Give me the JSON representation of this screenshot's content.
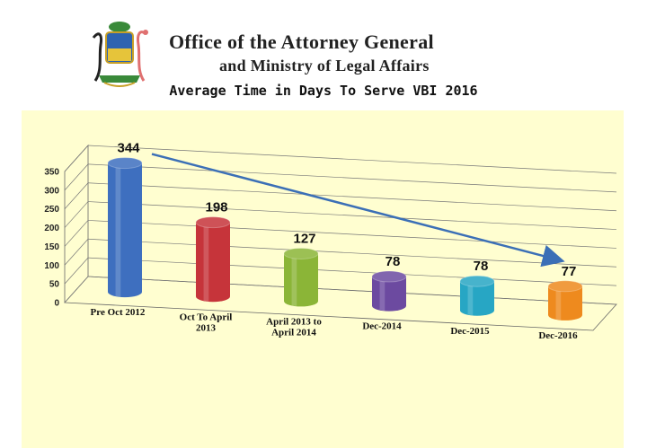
{
  "header": {
    "office_line1": "Office of the Attorney General",
    "office_line2": "and Ministry of Legal Affairs"
  },
  "colors": {
    "panel_background": "#fffed0",
    "trend_arrow": "#3b6fb6"
  },
  "chart_data": {
    "type": "bar",
    "style": "3d-cylinder",
    "title": "Average Time in Days To Serve VBI 2016",
    "xlabel": "",
    "ylabel": "",
    "ylim": [
      0,
      350
    ],
    "yticks": [
      0,
      50,
      100,
      150,
      200,
      250,
      300,
      350
    ],
    "grid": true,
    "legend": "none",
    "categories": [
      [
        "Pre Oct 2012"
      ],
      [
        "Oct To April",
        "2013"
      ],
      [
        "April 2013 to",
        "April 2014"
      ],
      [
        "Dec-2014"
      ],
      [
        "Dec-2015"
      ],
      [
        "Dec-2016"
      ]
    ],
    "values": [
      344,
      198,
      127,
      78,
      78,
      77
    ],
    "bar_colors": [
      "#3e6fbf",
      "#c6343a",
      "#8bb537",
      "#6c4aa0",
      "#27a6c4",
      "#ee8a1e"
    ],
    "annotations": [
      "trend arrow from first bar to last bar"
    ]
  }
}
